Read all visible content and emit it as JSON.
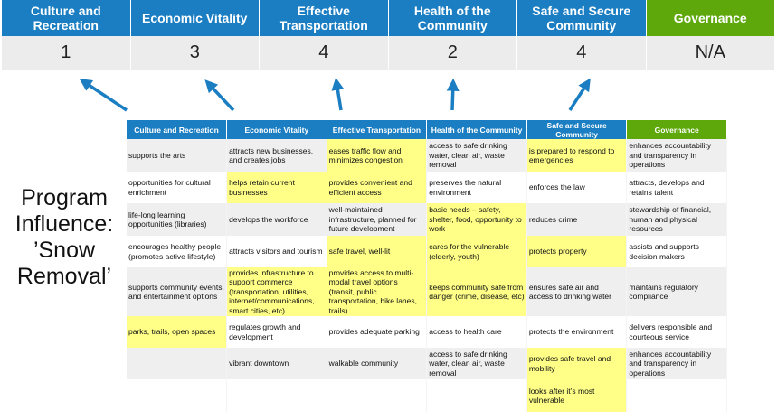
{
  "categories": [
    {
      "label": "Culture and Recreation",
      "score": "1"
    },
    {
      "label": "Economic Vitality",
      "score": "3"
    },
    {
      "label": "Effective Transportation",
      "score": "4"
    },
    {
      "label": "Health of the Community",
      "score": "2"
    },
    {
      "label": "Safe and Secure Community",
      "score": "4"
    },
    {
      "label": "Governance",
      "score": "N/A"
    }
  ],
  "side_label": "Program Influence: ’Snow Removal’",
  "colors": {
    "header_blue": "#1b7ec2",
    "governance_green": "#5ea80c",
    "highlight": "#ffff88",
    "arrow": "#1b7ec2"
  },
  "table": {
    "headers": [
      "Culture and Recreation",
      "Economic Vitality",
      "Effective Transportation",
      "Health of the Community",
      "Safe and Secure Community",
      "Governance"
    ],
    "rows": [
      {
        "cells": [
          "supports the arts",
          "attracts new businesses, and creates jobs",
          "eases traffic flow and minimizes congestion",
          "access to safe drinking water, clean air, waste removal",
          "is prepared to respond to emergencies",
          "enhances accountability and transparency in operations"
        ],
        "highlight": [
          2,
          4
        ]
      },
      {
        "cells": [
          "opportunities for cultural enrichment",
          "helps retain current businesses",
          "provides convenient and efficient access",
          "preserves the natural environment",
          "enforces the law",
          "attracts, develops and retains talent"
        ],
        "highlight": [
          1,
          2
        ]
      },
      {
        "cells": [
          "life-long learning opportunities (libraries)",
          "develops the workforce",
          "well-maintained infrastructure, planned for future development",
          "basic needs – safety, shelter, food, opportunity to work",
          "reduces crime",
          "stewardship of financial, human and physical resources"
        ],
        "highlight": [
          3
        ]
      },
      {
        "cells": [
          "encourages healthy people (promotes active lifestyle)",
          "attracts visitors and tourism",
          "safe travel, well-lit",
          "cares for the vulnerable (elderly, youth)",
          "protects property",
          "assists and supports decision makers"
        ],
        "highlight": [
          2,
          3,
          4
        ]
      },
      {
        "cells": [
          "supports community events, and entertainment options",
          "provides infrastructure to support commerce (transportation, utilities, internet/communications, smart cities, etc)",
          "provides access to multi-modal travel options (transit, public transportation, bike lanes, trails)",
          "keeps community safe from danger (crime, disease, etc)",
          "ensures safe air and access to drinking water",
          "maintains regulatory compliance"
        ],
        "highlight": [
          1,
          2,
          3
        ]
      },
      {
        "cells": [
          "parks, trails, open spaces",
          "regulates growth and development",
          "provides adequate parking",
          "access to health care",
          "protects the environment",
          "delivers responsible and courteous service"
        ],
        "highlight": [
          0
        ]
      },
      {
        "cells": [
          "",
          "vibrant downtown",
          "walkable community",
          "access to safe drinking water, clean air, waste removal",
          "provides safe travel and mobility",
          "enhances accountability and transparency in operations"
        ],
        "highlight": [
          4
        ]
      },
      {
        "cells": [
          "",
          "",
          "",
          "",
          "looks after it’s most vulnerable",
          ""
        ],
        "highlight": [
          4
        ]
      }
    ]
  }
}
